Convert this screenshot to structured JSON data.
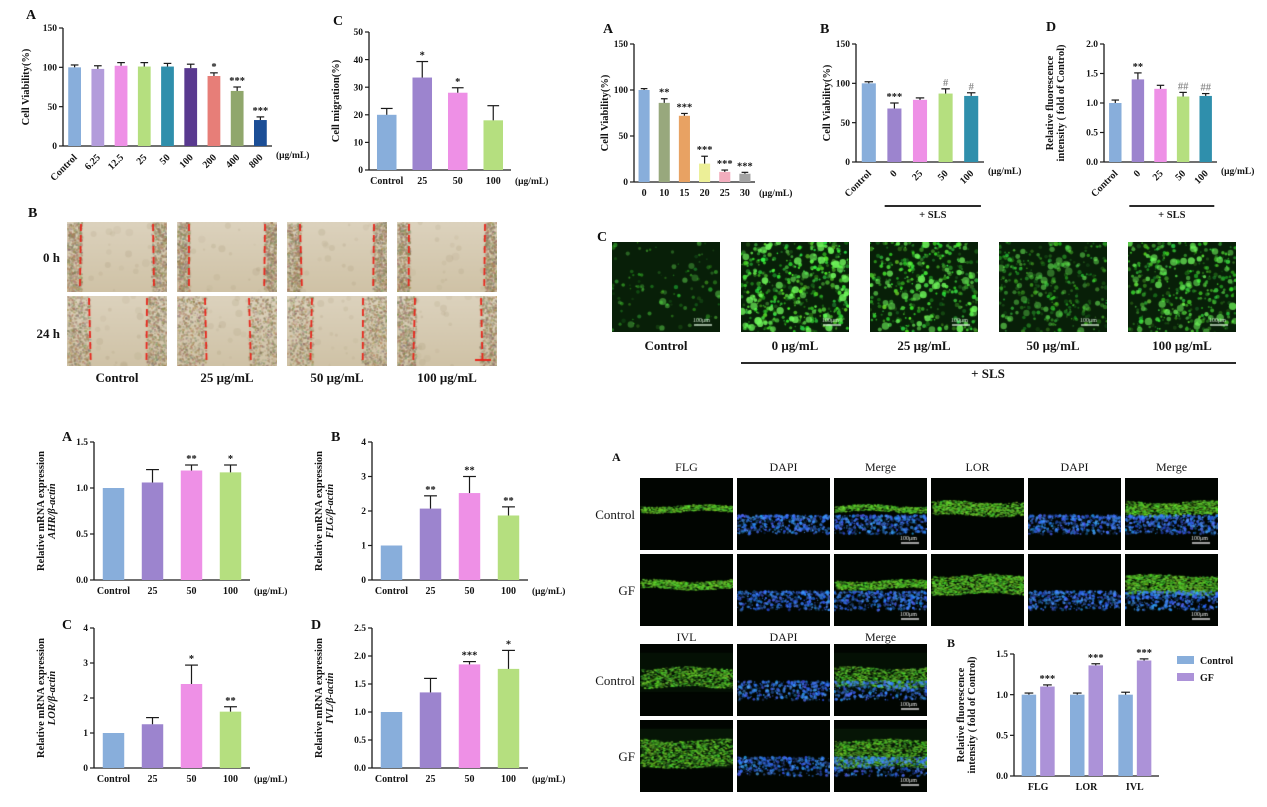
{
  "scratch": {
    "panel_label": "B",
    "row_labels": [
      "0 h",
      "24 h"
    ],
    "col_labels": [
      "Control",
      "25 μg/mL",
      "50 μg/mL",
      "100 μg/mL"
    ]
  },
  "sls_fluor": {
    "panel_label": "C",
    "labels": [
      "Control",
      "0 μg/mL",
      "25 μg/mL",
      "50 μg/mL",
      "100 μg/mL"
    ],
    "group_label": "+ SLS",
    "scalebar": "100μm"
  },
  "if_panel": {
    "panel_label": "A",
    "header1": [
      "FLG",
      "DAPI",
      "Merge",
      "LOR",
      "DAPI",
      "Merge"
    ],
    "rows1": [
      "Control",
      "GF"
    ],
    "header2": [
      "IVL",
      "DAPI",
      "Merge"
    ],
    "rows2": [
      "Control",
      "GF"
    ],
    "scalebar": "100μm"
  },
  "chart_data": [
    {
      "id": "tl_a",
      "panel_label": "A",
      "type": "bar",
      "ylabel": "Cell Viability(%)",
      "ylim": [
        0,
        150
      ],
      "yticks": [
        0,
        50,
        100,
        150
      ],
      "ytick_labels": [
        "0",
        "50",
        "100",
        "150"
      ],
      "categories": [
        "Control",
        "6.25",
        "12.5",
        "25",
        "50",
        "100",
        "200",
        "400",
        "800"
      ],
      "values": [
        100,
        98,
        102,
        101,
        101,
        99,
        89,
        70,
        33
      ],
      "errors": [
        3,
        4,
        4,
        5,
        4,
        5,
        4,
        5,
        4
      ],
      "sig": [
        "",
        "",
        "",
        "",
        "",
        "",
        "*",
        "***",
        "***"
      ],
      "colors": [
        "#88AEDB",
        "#B39CDB",
        "#EE90E6",
        "#B5DF7F",
        "#2F8FAC",
        "#59398F",
        "#E77E78",
        "#90A76C",
        "#1B4E96"
      ],
      "xunit": "(μg/mL)",
      "rotate_labels": true
    },
    {
      "id": "tl_c",
      "panel_label": "C",
      "type": "bar",
      "ylabel": "Cell migration(%)",
      "ylim": [
        0,
        50
      ],
      "yticks": [
        0,
        10,
        20,
        30,
        40,
        50
      ],
      "ytick_labels": [
        "0",
        "10",
        "20",
        "30",
        "40",
        "50"
      ],
      "categories": [
        "Control",
        "25",
        "50",
        "100"
      ],
      "values": [
        20,
        33.5,
        28,
        18
      ],
      "errors": [
        2.3,
        5.8,
        1.8,
        5.3
      ],
      "sig": [
        "",
        "*",
        "*",
        ""
      ],
      "colors": [
        "#88AEDB",
        "#9C84CE",
        "#EE90E6",
        "#B5DF7F"
      ],
      "xunit": "(μg/mL)",
      "rotate_labels": false
    },
    {
      "id": "tr_a",
      "panel_label": "A",
      "type": "bar",
      "ylabel": "Cell Viability(%)",
      "ylim": [
        0,
        150
      ],
      "yticks": [
        0,
        50,
        100,
        150
      ],
      "ytick_labels": [
        "0",
        "50",
        "100",
        "150"
      ],
      "categories": [
        "0",
        "10",
        "15",
        "20",
        "25",
        "30"
      ],
      "values": [
        100,
        86,
        72,
        20,
        11,
        9
      ],
      "errors": [
        1.5,
        4.5,
        2.5,
        8,
        2,
        1.5
      ],
      "sig": [
        "",
        "**",
        "***",
        "***",
        "***",
        "***"
      ],
      "colors": [
        "#88AEDB",
        "#98A87D",
        "#E8A263",
        "#ECEF97",
        "#F2ADBD",
        "#A3A3A3"
      ],
      "xunit": "(μg/mL)",
      "rotate_labels": false
    },
    {
      "id": "tr_b",
      "panel_label": "B",
      "type": "bar",
      "ylabel": "Cell Viability(%)",
      "ylim": [
        0,
        150
      ],
      "yticks": [
        0,
        50,
        100,
        150
      ],
      "ytick_labels": [
        "0",
        "50",
        "100",
        "150"
      ],
      "categories": [
        "Control",
        "0",
        "25",
        "50",
        "100"
      ],
      "values": [
        100,
        68,
        79,
        87,
        84
      ],
      "errors": [
        2,
        7,
        2.5,
        6,
        4
      ],
      "sig": [
        "",
        "***",
        "",
        "#",
        "#"
      ],
      "colors": [
        "#88AEDB",
        "#9C84CE",
        "#EE90E6",
        "#B5DF7F",
        "#2F8FAC"
      ],
      "xunit": "(μg/mL)",
      "rotate_labels": true,
      "groupline": {
        "from": 1,
        "to": 4,
        "label": "+ SLS"
      }
    },
    {
      "id": "tr_d",
      "panel_label": "D",
      "type": "bar",
      "ylabel": "Relative fluorescence",
      "ylabel2": "intensity ( fold of Control)",
      "ylim": [
        0,
        2.0
      ],
      "yticks": [
        0,
        0.5,
        1.0,
        1.5,
        2.0
      ],
      "ytick_labels": [
        "0.0",
        "0.5",
        "1.0",
        "1.5",
        "2.0"
      ],
      "categories": [
        "Control",
        "0",
        "25",
        "50",
        "100"
      ],
      "values": [
        1.0,
        1.4,
        1.24,
        1.11,
        1.12
      ],
      "errors": [
        0.05,
        0.11,
        0.06,
        0.07,
        0.04
      ],
      "sig": [
        "",
        "**",
        "",
        "##",
        "##"
      ],
      "colors": [
        "#88AEDB",
        "#9C84CE",
        "#EE90E6",
        "#B5DF7F",
        "#2F8FAC"
      ],
      "xunit": "(μg/mL)",
      "rotate_labels": true,
      "groupline": {
        "from": 1,
        "to": 4,
        "label": "+ SLS"
      }
    },
    {
      "id": "bl_a",
      "panel_label": "A",
      "type": "bar",
      "ylabel": "Relative mRNA expression",
      "ylabel2": "AHR/β-actin",
      "ylabel2_italic": true,
      "ylim": [
        0,
        1.5
      ],
      "yticks": [
        0,
        0.5,
        1.0,
        1.5
      ],
      "ytick_labels": [
        "0.0",
        "0.5",
        "1.0",
        "1.5"
      ],
      "categories": [
        "Control",
        "25",
        "50",
        "100"
      ],
      "values": [
        1.0,
        1.06,
        1.19,
        1.17
      ],
      "errors": [
        0,
        0.14,
        0.06,
        0.08
      ],
      "sig": [
        "",
        "",
        "**",
        "*"
      ],
      "colors": [
        "#88AEDB",
        "#9C84CE",
        "#EE90E6",
        "#B5DF7F"
      ],
      "xunit": "(μg/mL)",
      "rotate_labels": false
    },
    {
      "id": "bl_b",
      "panel_label": "B",
      "type": "bar",
      "ylabel": "Relative mRNA expression",
      "ylabel2": "FLG/β-actin",
      "ylabel2_italic": true,
      "ylim": [
        0,
        4
      ],
      "yticks": [
        0,
        1,
        2,
        3,
        4
      ],
      "ytick_labels": [
        "0",
        "1",
        "2",
        "3",
        "4"
      ],
      "categories": [
        "Control",
        "25",
        "50",
        "100"
      ],
      "values": [
        1.0,
        2.07,
        2.52,
        1.87
      ],
      "errors": [
        0,
        0.37,
        0.48,
        0.25
      ],
      "sig": [
        "",
        "**",
        "**",
        "**"
      ],
      "colors": [
        "#88AEDB",
        "#9C84CE",
        "#EE90E6",
        "#B5DF7F"
      ],
      "xunit": "(μg/mL)",
      "rotate_labels": false
    },
    {
      "id": "bl_c",
      "panel_label": "C",
      "type": "bar",
      "ylabel": "Relative mRNA expression",
      "ylabel2": "LOR/β-actin",
      "ylabel2_italic": true,
      "ylim": [
        0,
        4
      ],
      "yticks": [
        0,
        1,
        2,
        3,
        4
      ],
      "ytick_labels": [
        "0",
        "1",
        "2",
        "3",
        "4"
      ],
      "categories": [
        "Control",
        "25",
        "50",
        "100"
      ],
      "values": [
        1.0,
        1.25,
        2.4,
        1.61
      ],
      "errors": [
        0,
        0.19,
        0.54,
        0.14
      ],
      "sig": [
        "",
        "",
        "*",
        "**"
      ],
      "colors": [
        "#88AEDB",
        "#9C84CE",
        "#EE90E6",
        "#B5DF7F"
      ],
      "xunit": "(μg/mL)",
      "rotate_labels": false
    },
    {
      "id": "bl_d",
      "panel_label": "D",
      "type": "bar",
      "ylabel": "Relative mRNA expression",
      "ylabel2": "IVL/β-actin",
      "ylabel2_italic": true,
      "ylim": [
        0,
        2.5
      ],
      "yticks": [
        0,
        0.5,
        1.0,
        1.5,
        2.0,
        2.5
      ],
      "ytick_labels": [
        "0.0",
        "0.5",
        "1.0",
        "1.5",
        "2.0",
        "2.5"
      ],
      "categories": [
        "Control",
        "25",
        "50",
        "100"
      ],
      "values": [
        1.0,
        1.35,
        1.85,
        1.77
      ],
      "errors": [
        0,
        0.25,
        0.05,
        0.33
      ],
      "sig": [
        "",
        "",
        "***",
        "*"
      ],
      "colors": [
        "#88AEDB",
        "#9C84CE",
        "#EE90E6",
        "#B5DF7F"
      ],
      "xunit": "(μg/mL)",
      "rotate_labels": false
    },
    {
      "id": "br_b",
      "panel_label": "B",
      "type": "grouped-bar",
      "ylabel": "Relative fluorescence",
      "ylabel2": "intensity ( fold of Control)",
      "ylim": [
        0,
        1.5
      ],
      "yticks": [
        0,
        0.5,
        1.0,
        1.5
      ],
      "ytick_labels": [
        "0.0",
        "0.5",
        "1.0",
        "1.5"
      ],
      "categories": [
        "FLG",
        "LOR",
        "IVL"
      ],
      "series": [
        {
          "name": "Control",
          "color": "#88AEDB",
          "values": [
            1.0,
            1.0,
            1.0
          ],
          "errors": [
            0.02,
            0.02,
            0.03
          ],
          "sig": [
            "",
            "",
            ""
          ]
        },
        {
          "name": "GF",
          "color": "#AC92D8",
          "values": [
            1.1,
            1.36,
            1.42
          ],
          "errors": [
            0.02,
            0.02,
            0.02
          ],
          "sig": [
            "***",
            "***",
            "***"
          ]
        }
      ],
      "legend": true,
      "rotate_labels": false
    }
  ]
}
